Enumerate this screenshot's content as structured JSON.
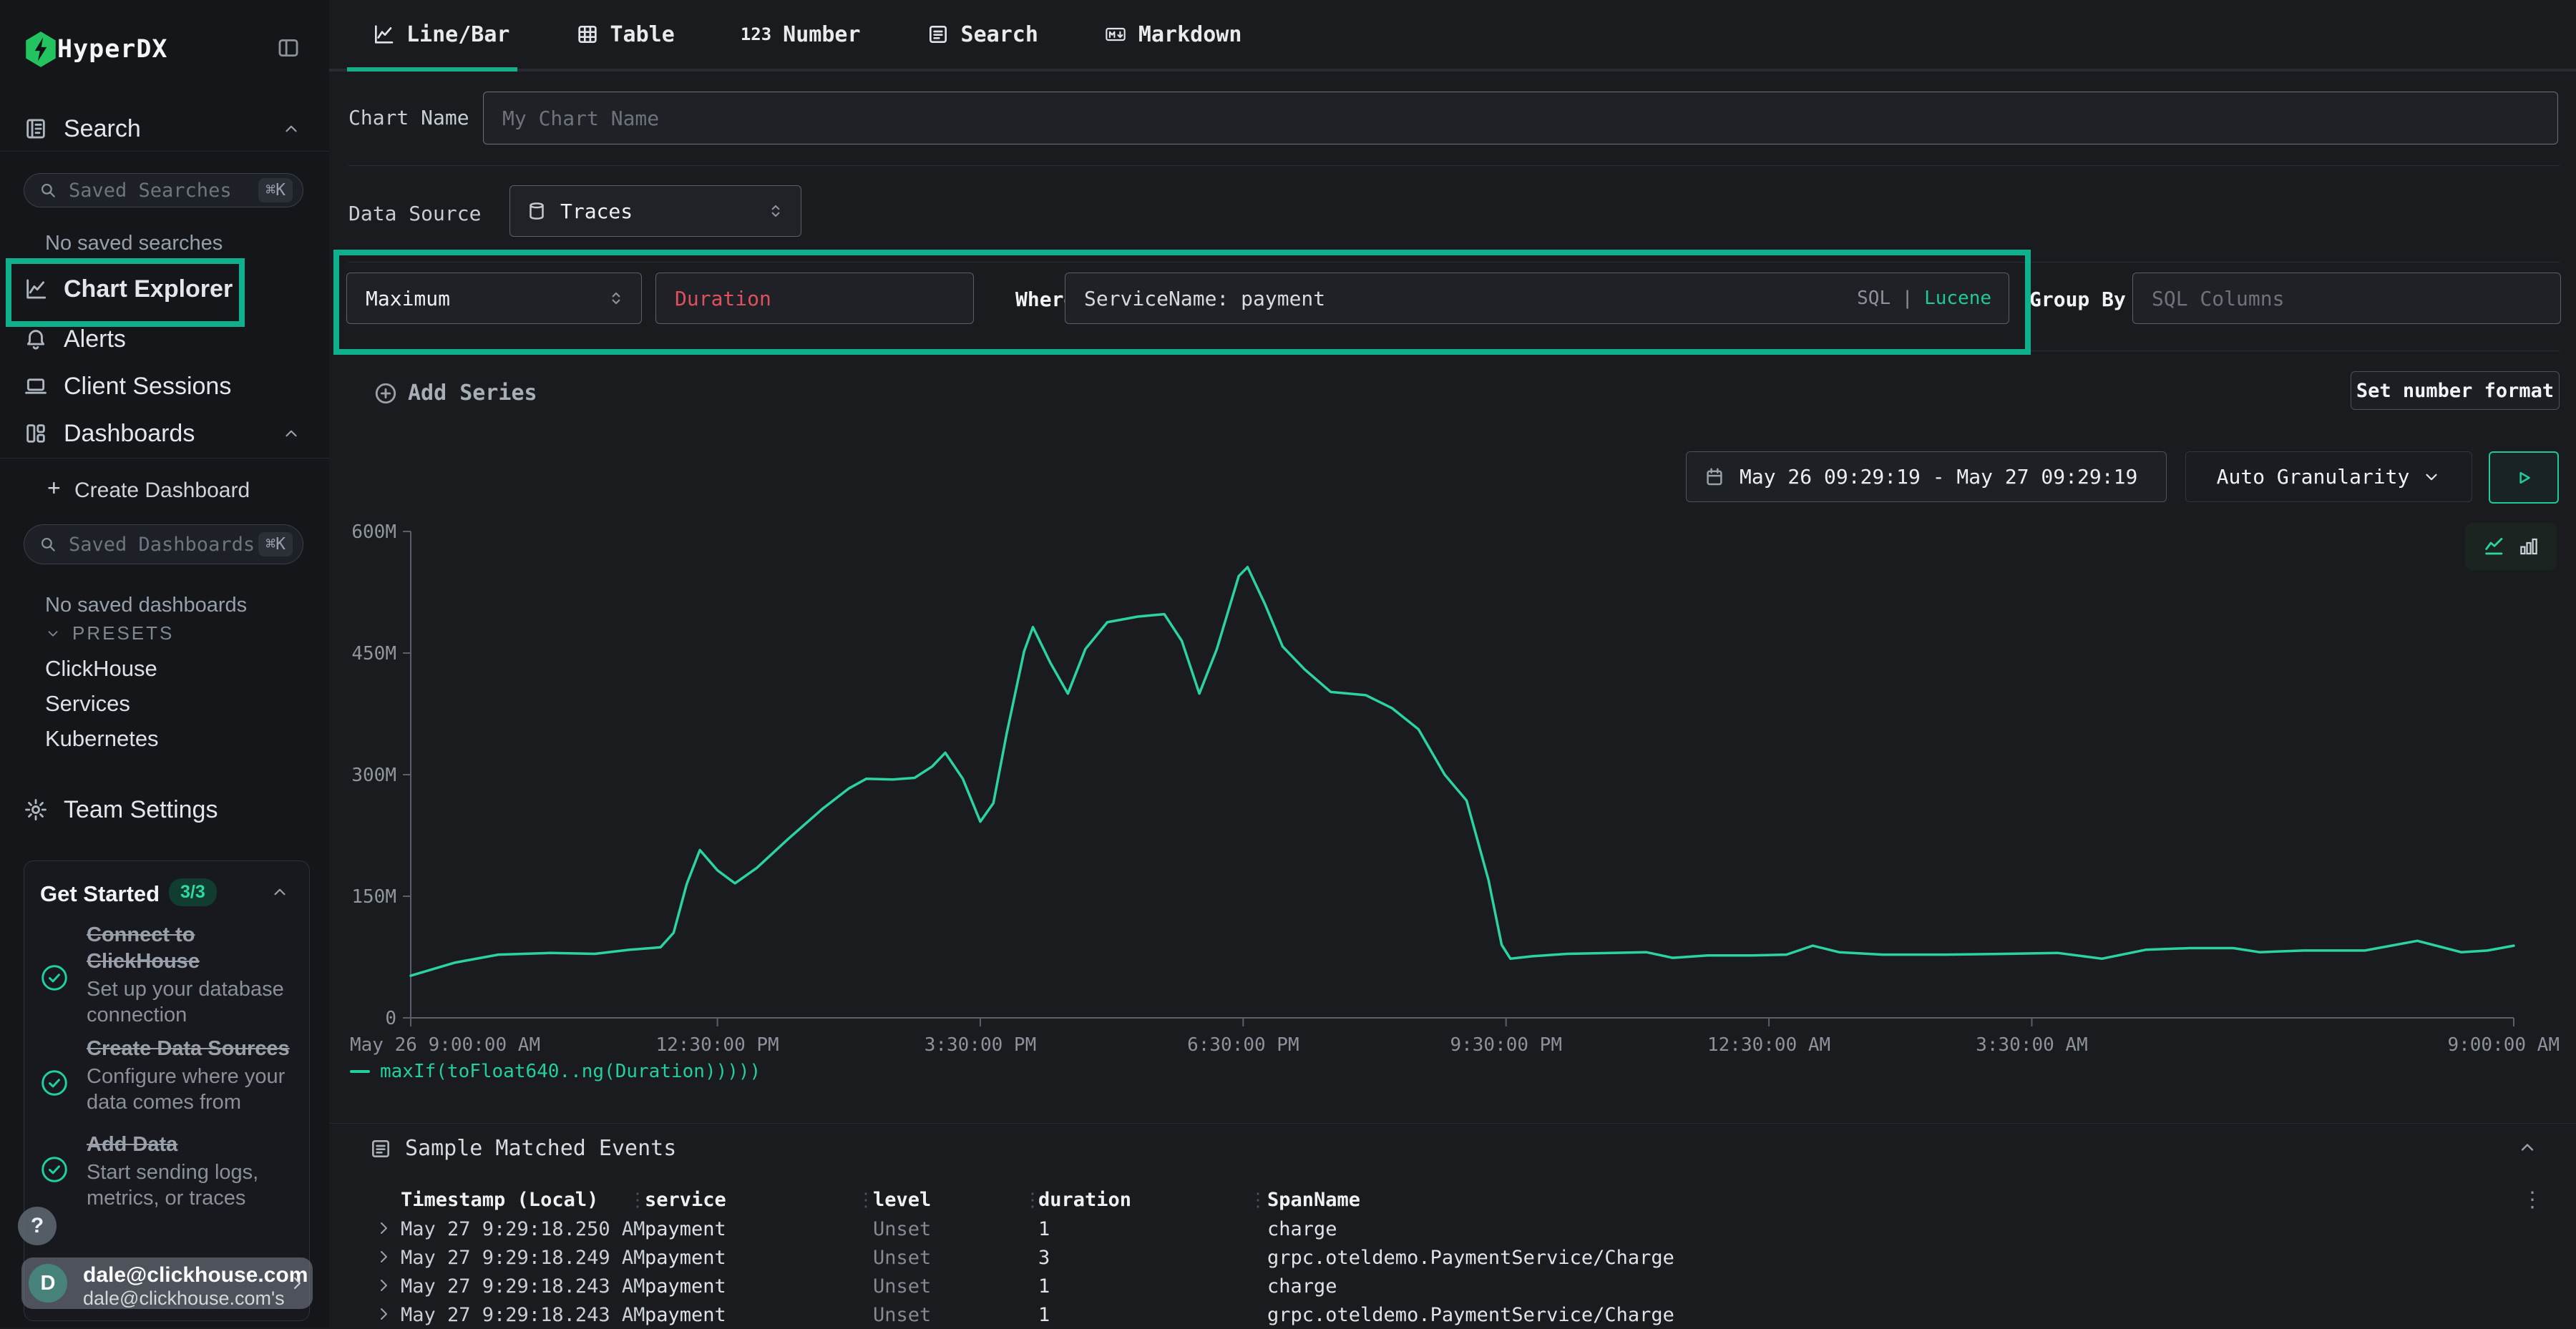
{
  "colors": {
    "accent": "#1fc998",
    "annotation": "#0fb18c",
    "chart_line": "#2cd3a2",
    "duration_field": "#e0505f",
    "background": "#191b1f"
  },
  "sidebar": {
    "brand": "HyperDX",
    "search_label": "Search",
    "saved_searches_placeholder": "Saved Searches",
    "saved_searches_shortcut": "⌘K",
    "no_saved_searches": "No saved searches",
    "chart_explorer": "Chart Explorer",
    "alerts": "Alerts",
    "client_sessions": "Client Sessions",
    "dashboards": "Dashboards",
    "create_dashboard_label": "Create Dashboard",
    "create_dashboard_plus": "+",
    "saved_dashboards_placeholder": "Saved Dashboards",
    "saved_dashboards_shortcut": "⌘K",
    "no_saved_dashboards": "No saved dashboards",
    "presets_label": "PRESETS",
    "presets": [
      "ClickHouse",
      "Services",
      "Kubernetes"
    ],
    "team_settings": "Team Settings",
    "get_started": {
      "title": "Get Started",
      "badge": "3/3",
      "items": [
        {
          "title": "Connect to ClickHouse",
          "desc": "Set up your database connection"
        },
        {
          "title": "Create Data Sources",
          "desc": "Configure where your data comes from"
        },
        {
          "title": "Add Data",
          "desc": "Start sending logs, metrics, or traces"
        }
      ]
    },
    "help_label": "?",
    "user": {
      "initial": "D",
      "email": "dale@clickhouse.com",
      "sub": "dale@clickhouse.com's"
    }
  },
  "tabs": [
    {
      "id": "line-bar",
      "label": "Line/Bar",
      "icon": "chart-line",
      "active": true
    },
    {
      "id": "table",
      "label": "Table",
      "icon": "table",
      "active": false
    },
    {
      "id": "number",
      "label": "Number",
      "icon_text": "123",
      "active": false
    },
    {
      "id": "search",
      "label": "Search",
      "icon": "list",
      "active": false
    },
    {
      "id": "markdown",
      "label": "Markdown",
      "icon": "markdown",
      "active": false
    }
  ],
  "editor": {
    "chart_name_label": "Chart Name",
    "chart_name_placeholder": "My Chart Name",
    "data_source_label": "Data Source",
    "data_source_value": "Traces",
    "aggregation_value": "Maximum",
    "field_value": "Duration",
    "where_label": "Where",
    "where_value": "ServiceName: payment",
    "sql_label": "SQL",
    "divider": "|",
    "lucene_label": "Lucene",
    "group_by_label": "Group By",
    "group_by_placeholder": "SQL Columns",
    "add_series_label": "Add Series",
    "set_number_format_label": "Set number format"
  },
  "toolbar": {
    "date_range": "May 26 09:29:19 - May 27 09:29:19",
    "granularity": "Auto Granularity"
  },
  "chart_data": {
    "type": "line",
    "title": "",
    "series_name": "maxIf(toFloat640..ng(Duration)))))",
    "color": "#2cd3a2",
    "x_range": [
      0,
      24
    ],
    "ylim": [
      0,
      600
    ],
    "grid": false,
    "legend_position": "bottom-left",
    "y_ticks": [
      {
        "v": 0,
        "label": "0"
      },
      {
        "v": 150,
        "label": "150M"
      },
      {
        "v": 300,
        "label": "300M"
      },
      {
        "v": 450,
        "label": "450M"
      },
      {
        "v": 600,
        "label": "600M"
      }
    ],
    "x_ticks": [
      {
        "t": 0,
        "label": "May 26 9:00:00 AM",
        "anchor": "start"
      },
      {
        "t": 3.5,
        "label": "12:30:00 PM",
        "anchor": "middle"
      },
      {
        "t": 6.5,
        "label": "3:30:00 PM",
        "anchor": "middle"
      },
      {
        "t": 9.5,
        "label": "6:30:00 PM",
        "anchor": "middle"
      },
      {
        "t": 12.5,
        "label": "9:30:00 PM",
        "anchor": "middle"
      },
      {
        "t": 15.5,
        "label": "12:30:00 AM",
        "anchor": "middle"
      },
      {
        "t": 18.5,
        "label": "3:30:00 AM",
        "anchor": "middle"
      },
      {
        "t": 24,
        "label": "9:00:00 AM",
        "anchor": "end"
      }
    ],
    "points": [
      [
        0,
        52
      ],
      [
        0.5,
        68
      ],
      [
        1,
        78
      ],
      [
        1.6,
        80
      ],
      [
        2.1,
        79
      ],
      [
        2.5,
        84
      ],
      [
        2.85,
        87
      ],
      [
        3.0,
        105
      ],
      [
        3.15,
        165
      ],
      [
        3.3,
        207
      ],
      [
        3.5,
        182
      ],
      [
        3.7,
        166
      ],
      [
        3.95,
        185
      ],
      [
        4.3,
        220
      ],
      [
        4.7,
        258
      ],
      [
        5.0,
        283
      ],
      [
        5.2,
        295
      ],
      [
        5.5,
        294
      ],
      [
        5.75,
        296
      ],
      [
        5.95,
        310
      ],
      [
        6.1,
        327
      ],
      [
        6.3,
        295
      ],
      [
        6.5,
        242
      ],
      [
        6.65,
        265
      ],
      [
        6.8,
        350
      ],
      [
        7.0,
        452
      ],
      [
        7.1,
        482
      ],
      [
        7.3,
        438
      ],
      [
        7.5,
        400
      ],
      [
        7.7,
        455
      ],
      [
        7.95,
        488
      ],
      [
        8.3,
        495
      ],
      [
        8.6,
        498
      ],
      [
        8.8,
        465
      ],
      [
        9.0,
        400
      ],
      [
        9.2,
        455
      ],
      [
        9.45,
        545
      ],
      [
        9.55,
        556
      ],
      [
        9.75,
        510
      ],
      [
        9.95,
        458
      ],
      [
        10.2,
        430
      ],
      [
        10.5,
        402
      ],
      [
        10.9,
        398
      ],
      [
        11.2,
        382
      ],
      [
        11.5,
        356
      ],
      [
        11.8,
        300
      ],
      [
        12.05,
        268
      ],
      [
        12.3,
        170
      ],
      [
        12.45,
        90
      ],
      [
        12.55,
        73
      ],
      [
        12.8,
        76
      ],
      [
        13.2,
        79
      ],
      [
        13.7,
        80
      ],
      [
        14.1,
        81
      ],
      [
        14.4,
        74
      ],
      [
        14.8,
        77
      ],
      [
        15.3,
        77
      ],
      [
        15.7,
        78
      ],
      [
        16.0,
        89
      ],
      [
        16.3,
        81
      ],
      [
        16.8,
        78
      ],
      [
        17.5,
        78
      ],
      [
        18.2,
        79
      ],
      [
        18.8,
        80
      ],
      [
        19.3,
        73
      ],
      [
        19.8,
        84
      ],
      [
        20.3,
        86
      ],
      [
        20.8,
        86
      ],
      [
        21.1,
        81
      ],
      [
        21.6,
        83
      ],
      [
        22.3,
        83
      ],
      [
        22.9,
        95
      ],
      [
        23.4,
        81
      ],
      [
        23.7,
        83
      ],
      [
        24,
        89
      ]
    ]
  },
  "legend_label": "maxIf(toFloat640..ng(Duration)))))",
  "events": {
    "title": "Sample Matched Events",
    "columns": [
      "Timestamp (Local)",
      "service",
      "level",
      "duration",
      "SpanName"
    ],
    "rows": [
      [
        "May 27 9:29:18.250 AM",
        "payment",
        "Unset",
        "1",
        "charge"
      ],
      [
        "May 27 9:29:18.249 AM",
        "payment",
        "Unset",
        "3",
        "grpc.oteldemo.PaymentService/Charge"
      ],
      [
        "May 27 9:29:18.243 AM",
        "payment",
        "Unset",
        "1",
        "charge"
      ],
      [
        "May 27 9:29:18.243 AM",
        "payment",
        "Unset",
        "1",
        "grpc.oteldemo.PaymentService/Charge"
      ]
    ]
  }
}
